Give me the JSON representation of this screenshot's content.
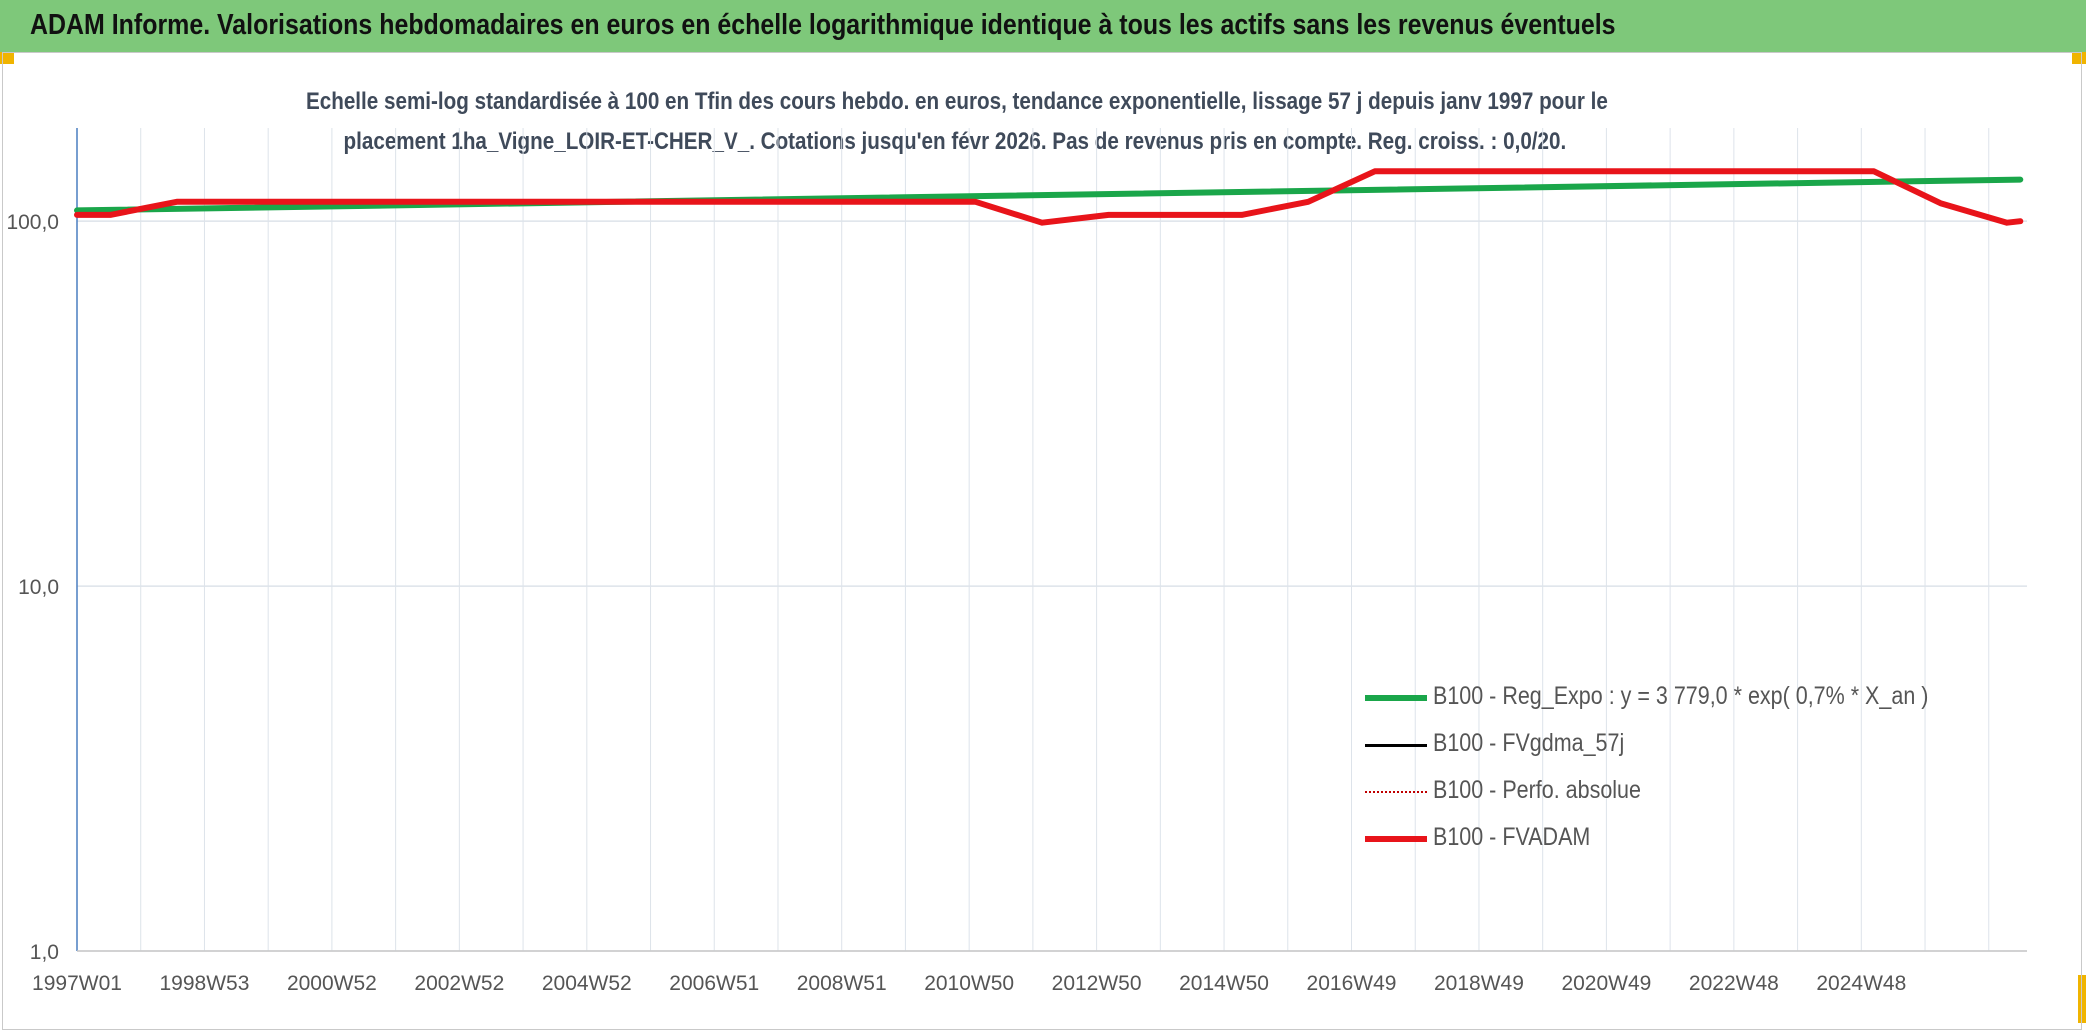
{
  "header": {
    "title": "ADAM Informe. Valorisations hebdomadaires en euros en échelle logarithmique identique à tous les actifs sans les revenus éventuels"
  },
  "colors": {
    "banner": "#7ec87a",
    "trend": "#1aa64a",
    "fvadam": "#e8141a",
    "gdma": "#000000",
    "perfo": "#c00000",
    "corner": "#f0b400"
  },
  "chart_data": {
    "type": "line",
    "title_line1": "Echelle semi-log standardisée à 100 en Tfin des cours hebdo. en euros, tendance exponentielle, lissage 57 j depuis janv 1997 pour le",
    "title_line2": "placement 1ha_Vigne_LOIR-ET-CHER_V_. Cotations jusqu'en févr 2026. Pas de revenus pris en compte. Reg. croiss. : 0,0/20.",
    "y_scale": "log",
    "ylim": [
      1,
      180
    ],
    "y_ticks": [
      {
        "value": 1,
        "label": "1,0"
      },
      {
        "value": 10,
        "label": "10,0"
      },
      {
        "value": 100,
        "label": "100,0"
      }
    ],
    "x_tick_labels": [
      "1997W01",
      "1998W53",
      "2000W52",
      "2002W52",
      "2004W52",
      "2006W51",
      "2008W51",
      "2010W50",
      "2012W50",
      "2014W50",
      "2016W49",
      "2018W49",
      "2020W49",
      "2022W48",
      "2024W48"
    ],
    "xlim": [
      1997.0,
      2026.3
    ],
    "grid": true,
    "legend_position": "right",
    "series": [
      {
        "name": "B100 - Reg_Expo : y = 3 779,0 * exp( 0,7% *  X_an )",
        "color": "#1aa64a",
        "style": "solid-thick",
        "x": [
          1997.0,
          2026.2
        ],
        "y": [
          107,
          130
        ]
      },
      {
        "name": "B100 - FVgdma_57j",
        "color": "#000000",
        "style": "solid-thin",
        "x": [],
        "y": []
      },
      {
        "name": "B100 - Perfo. absolue",
        "color": "#c00000",
        "style": "dotted",
        "x": [],
        "y": []
      },
      {
        "name": "B100 - FVADAM",
        "color": "#e8141a",
        "style": "solid-thick",
        "x": [
          1997.0,
          1997.5,
          1998.5,
          2010.5,
          2011.5,
          2012.5,
          2014.5,
          2015.5,
          2016.5,
          2024.0,
          2025.0,
          2026.0,
          2026.2
        ],
        "y": [
          104,
          104,
          113,
          113,
          99,
          104,
          104,
          113,
          137,
          137,
          112,
          99,
          100
        ]
      }
    ]
  }
}
